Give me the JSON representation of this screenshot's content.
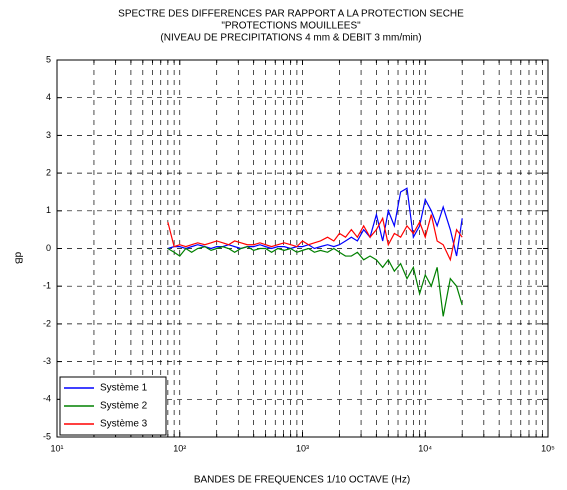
{
  "chart_data": {
    "type": "line",
    "title": "SPECTRE DES DIFFERENCES PAR RAPPORT A LA PROTECTION SECHE",
    "subtitle": "\"PROTECTIONS MOUILLEES\"",
    "subtitle2": "(NIVEAU DE PRECIPITATIONS 4 mm & DEBIT 3 mm/min)",
    "xlabel": "BANDES DE FREQUENCES 1/10 OCTAVE (Hz)",
    "ylabel": "dB",
    "xscale": "log",
    "grid": true,
    "legend": "lower left",
    "xlim": [
      10,
      100000
    ],
    "ylim": [
      -5,
      5
    ],
    "xticks": [
      {
        "value": 10,
        "label": "10¹"
      },
      {
        "value": 100,
        "label": "10²"
      },
      {
        "value": 1000,
        "label": "10³"
      },
      {
        "value": 10000,
        "label": "10⁴"
      },
      {
        "value": 100000,
        "label": "10⁵"
      }
    ],
    "xminorticks": [
      20,
      30,
      40,
      50,
      60,
      70,
      80,
      90,
      200,
      300,
      400,
      500,
      600,
      700,
      800,
      900,
      2000,
      3000,
      4000,
      5000,
      6000,
      7000,
      8000,
      9000,
      20000,
      30000,
      40000,
      50000,
      60000,
      70000,
      80000,
      90000
    ],
    "yticks": [
      -5,
      -4,
      -3,
      -2,
      -1,
      0,
      1,
      2,
      3,
      4,
      5
    ],
    "x": [
      80,
      90,
      100,
      112,
      125,
      140,
      160,
      180,
      200,
      224,
      250,
      280,
      315,
      355,
      400,
      450,
      500,
      560,
      630,
      710,
      800,
      900,
      1000,
      1120,
      1250,
      1400,
      1600,
      1800,
      2000,
      2240,
      2500,
      2800,
      3150,
      3550,
      4000,
      4500,
      5000,
      5600,
      6300,
      7100,
      8000,
      9000,
      10000,
      11200,
      12500,
      14000,
      16000,
      18000,
      20000
    ],
    "series": [
      {
        "name": "Système 1",
        "color": "#0000ff",
        "values": [
          0.0,
          0.05,
          0.05,
          0.0,
          0.05,
          0.1,
          0.05,
          0.0,
          0.05,
          0.05,
          0.1,
          0.05,
          0.0,
          0.05,
          0.05,
          0.1,
          0.05,
          0.0,
          0.05,
          0.05,
          0.0,
          0.05,
          0.05,
          0.1,
          0.0,
          0.05,
          0.1,
          0.05,
          0.1,
          0.2,
          0.3,
          0.2,
          0.5,
          0.3,
          0.9,
          0.2,
          1.0,
          0.6,
          1.5,
          1.6,
          0.3,
          0.6,
          1.3,
          1.0,
          0.6,
          1.1,
          0.5,
          -0.2,
          0.8
        ]
      },
      {
        "name": "Système 2",
        "color": "#008000",
        "values": [
          0.0,
          -0.1,
          -0.2,
          0.0,
          -0.1,
          0.0,
          0.05,
          -0.05,
          0.0,
          0.05,
          0.0,
          -0.1,
          0.0,
          0.05,
          -0.05,
          0.0,
          0.0,
          -0.1,
          0.0,
          -0.05,
          0.0,
          -0.1,
          -0.05,
          0.0,
          -0.1,
          -0.05,
          -0.1,
          0.0,
          -0.1,
          -0.2,
          -0.2,
          -0.1,
          -0.3,
          -0.2,
          -0.3,
          -0.5,
          -0.3,
          -0.6,
          -0.4,
          -0.8,
          -0.5,
          -1.2,
          -0.7,
          -1.0,
          -0.5,
          -1.8,
          -0.8,
          -1.0,
          -1.5
        ]
      },
      {
        "name": "Système 3",
        "color": "#ff0000",
        "values": [
          0.7,
          0.05,
          0.1,
          0.05,
          0.1,
          0.15,
          0.1,
          0.15,
          0.2,
          0.15,
          0.1,
          0.2,
          0.15,
          0.1,
          0.1,
          0.15,
          0.1,
          0.05,
          0.1,
          0.15,
          0.1,
          0.05,
          0.2,
          0.1,
          0.15,
          0.2,
          0.3,
          0.2,
          0.4,
          0.3,
          0.5,
          0.3,
          0.6,
          0.3,
          0.5,
          0.8,
          0.1,
          0.4,
          0.3,
          0.6,
          0.4,
          0.7,
          0.3,
          0.9,
          0.2,
          0.1,
          -0.3,
          0.5,
          0.3
        ]
      }
    ]
  }
}
